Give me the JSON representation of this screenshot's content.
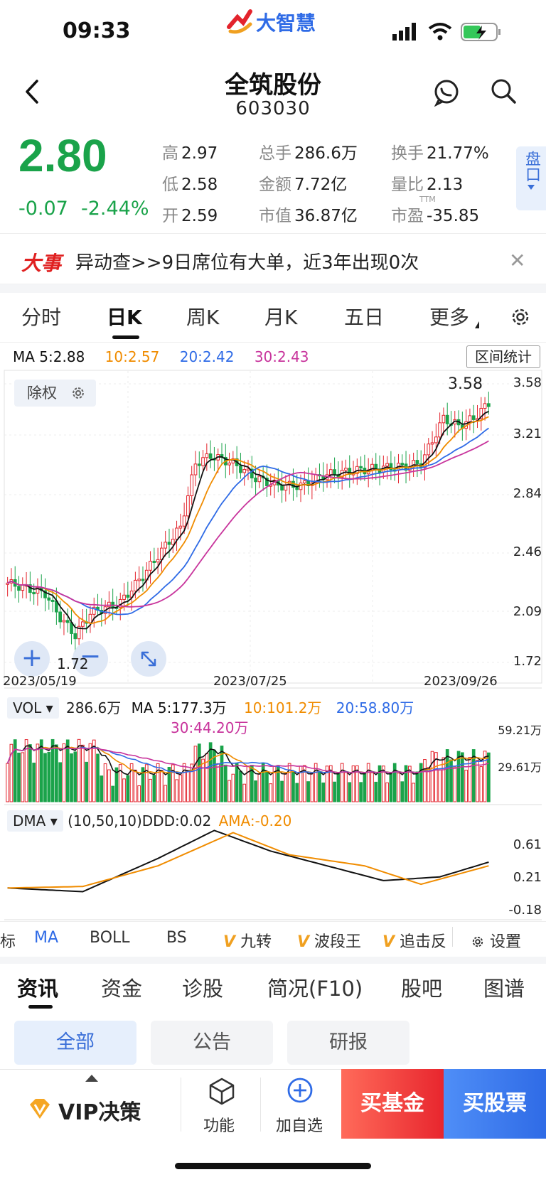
{
  "status_bar": {
    "time": "09:33",
    "logo_text": "大智慧"
  },
  "header": {
    "stock_name": "全筑股份",
    "stock_code": "603030"
  },
  "quote": {
    "price": "2.80",
    "change": "-0.07",
    "change_pct": "-2.44%",
    "high_label": "高",
    "high": "2.97",
    "low_label": "低",
    "low": "2.58",
    "open_label": "开",
    "open": "2.59",
    "volume_label": "总手",
    "volume": "286.6万",
    "amount_label": "金额",
    "amount": "7.72亿",
    "mcap_label": "市值",
    "mcap": "36.87亿",
    "turnover_label": "换手",
    "turnover": "21.77%",
    "vol_ratio_label": "量比",
    "vol_ratio": "2.13",
    "pe_label": "市盈",
    "pe_sup": "TTM",
    "pe": "-35.85",
    "pankou": "盘口"
  },
  "news_banner": {
    "tag": "大事",
    "text": "异动查>>9日席位有大单，近3年出现0次"
  },
  "period_tabs": [
    "分时",
    "日K",
    "周K",
    "月K",
    "五日",
    "更多"
  ],
  "chart": {
    "ma_legend": {
      "ma5": "MA 5:2.88",
      "ma10": "10:2.57",
      "ma20": "20:2.42",
      "ma30": "30:2.43"
    },
    "range_button": "区间统计",
    "adjust_button": "除权",
    "price_axis": [
      "3.58",
      "3.21",
      "2.84",
      "2.46",
      "2.09",
      "1.72"
    ],
    "high_marker": "3.58",
    "low_marker": "1.72",
    "dates": [
      "2023/05/19",
      "2023/07/25",
      "2023/09/26"
    ],
    "colors": {
      "up": "#e3232c",
      "down": "#1aa34a",
      "ma5": "#111111",
      "ma10": "#f08c00",
      "ma20": "#2f6be6",
      "ma30": "#c8349c"
    }
  },
  "volume": {
    "selector": "VOL",
    "vol": "286.6万",
    "ma5": "MA 5:177.3万",
    "ma10": "10:101.2万",
    "ma20": "20:58.80万",
    "ma30": "30:44.20万",
    "axis": [
      "59.21万",
      "29.61万"
    ]
  },
  "dma": {
    "selector": "DMA",
    "params": "(10,50,10)DDD:0.02",
    "ama": "AMA:-0.20",
    "axis": [
      "0.61",
      "0.21",
      "-0.18"
    ]
  },
  "indicator_tabs": {
    "partial": "标",
    "ma": "MA",
    "boll": "BOLL",
    "bs": "BS",
    "jiuzhuan": "九转",
    "boduan": "波段王",
    "zhuiji": "追击反",
    "settings": "设置"
  },
  "news_tabs": [
    "资讯",
    "资金",
    "诊股",
    "简况(F10)",
    "股吧",
    "图谱"
  ],
  "news_chips": [
    "全部",
    "公告",
    "研报"
  ],
  "bottom_bar": {
    "vip": "VIP决策",
    "func": "功能",
    "add": "加自选",
    "buy_fund": "买基金",
    "buy_stock": "买股票"
  }
}
